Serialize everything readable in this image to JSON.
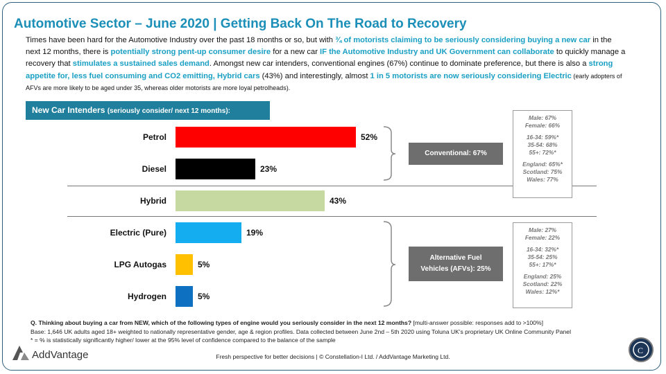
{
  "title": "Automotive Sector – June 2020 | Getting Back On The Road to Recovery",
  "intro": {
    "p1": "Times have been hard for the Automotive Industry over the past 18 months or so, but with ",
    "h1": "¾ of motorists claiming to be seriously considering buying a new car",
    "p2": " in the next 12 months, there is ",
    "h2": "potentially strong pent-up consumer desire",
    "p3": " for a new car ",
    "h3": "IF the Automotive Industry and UK Government can collaborate",
    "p4": " to quickly manage a recovery that ",
    "h4": "stimulates a sustained sales demand",
    "p5": ". Amongst new car intenders, conventional engines (67%) continue to dominate preference, but there is also a ",
    "h5": "strong appetite for, less fuel consuming and CO2 emitting, Hybrid cars",
    "p6": " (43%) and interestingly, almost ",
    "h6": "1 in 5 motorists are now seriously considering Electric",
    "p7": " (early adopters of AFVs are more likely to be aged under 35, whereas older motorists are more loyal petrolheads)."
  },
  "panel": {
    "title": "New Car Intenders",
    "subtitle": "(seriously consider/ next 12 months):"
  },
  "chart_data": {
    "type": "bar",
    "orientation": "horizontal",
    "categories": [
      "Petrol",
      "Diesel",
      "Hybrid",
      "Electric (Pure)",
      "LPG Autogas",
      "Hydrogen"
    ],
    "values": [
      52,
      23,
      43,
      19,
      5,
      5
    ],
    "value_labels": [
      "52%",
      "23%",
      "43%",
      "19%",
      "5%",
      "5%"
    ],
    "colors": [
      "#ff0000",
      "#000000",
      "#c6d9a0",
      "#14aef0",
      "#ffc000",
      "#0e70c0"
    ],
    "xlim": [
      0,
      100
    ]
  },
  "groups": [
    {
      "label_line1": "Conventional: 67%",
      "label_line2": ""
    },
    {
      "label_line1": "Alternative Fuel",
      "label_line2": "Vehicles (AFVs): 25%"
    }
  ],
  "demographics": [
    {
      "gender": [
        "Male: 67%",
        "Female: 66%"
      ],
      "age": [
        "16-34: 59%*",
        "35-54: 68%",
        "55+: 72%*"
      ],
      "region": [
        "England: 65%*",
        "Scotland: 75%",
        "Wales: 77%"
      ]
    },
    {
      "gender": [
        "Male: 27%",
        "Female: 22%"
      ],
      "age": [
        "16-34: 32%*",
        "35-54: 25%",
        "55+: 17%*"
      ],
      "region": [
        "England: 25%",
        "Scotland: 22%",
        "Wales: 12%*"
      ]
    }
  ],
  "footer": {
    "question": "Q. Thinking about buying a car from NEW, which of the following types of engine would you seriously consider in the next 12 months?",
    "question_note": " [multi-answer possible: responses add to >100%]",
    "base": "Base: 1,646 UK adults aged 18+ weighted to nationally representative gender, age & region profiles. Data collected between June 2nd – 5th 2020 using Toluna UK's proprietary UK Online Community Panel",
    "sig": "* = % is statistically significantly higher/ lower at the 95% level of confidence compared to the balance of the sample",
    "brand": "AddVantage",
    "tagline": "Fresh perspective for better decisions | © Constellation-I Ltd. / AddVantage Marketing Ltd."
  }
}
